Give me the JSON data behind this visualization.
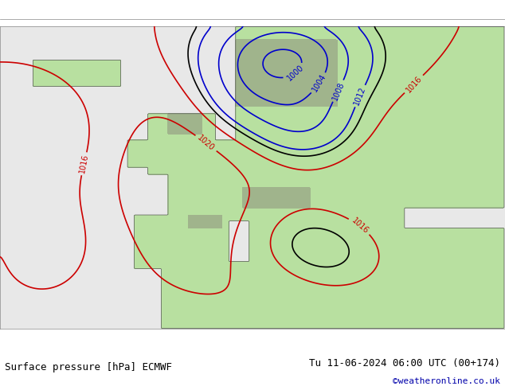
{
  "title_left": "Surface pressure [hPa] ECMWF",
  "title_right": "Tu 11-06-2024 06:00 UTC (00+174)",
  "copyright": "©weatheronline.co.uk",
  "bg_ocean": "#e8e8e8",
  "bg_land": "#b8e0a0",
  "bg_highland": "#a0a0a0",
  "contour_colors": {
    "black": "#000000",
    "blue": "#0000cc",
    "red": "#cc0000"
  },
  "figsize": [
    6.34,
    4.9
  ],
  "dpi": 100
}
